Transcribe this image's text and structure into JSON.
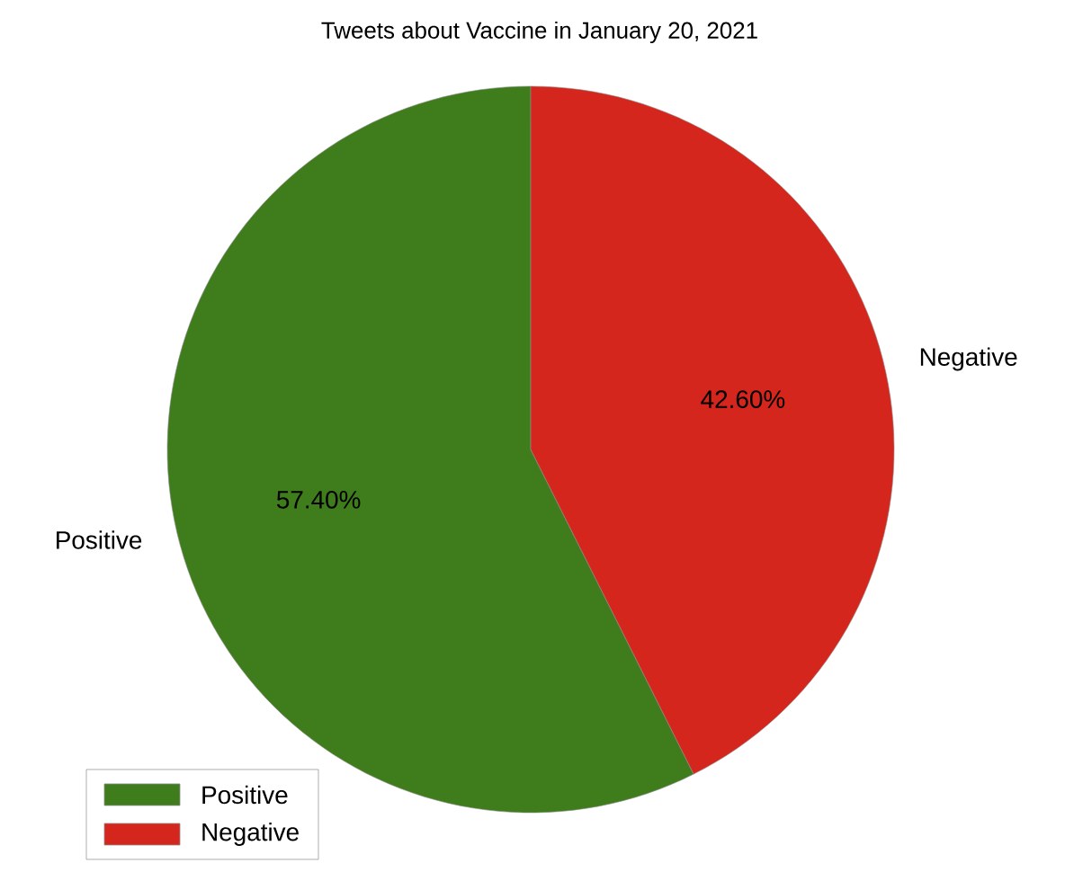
{
  "chart_data": {
    "type": "pie",
    "title": "Tweets about Vaccine in January 20, 2021",
    "categories": [
      "Positive",
      "Negative"
    ],
    "values": [
      57.4,
      42.6
    ],
    "value_labels": [
      "57.40%",
      "42.60%"
    ],
    "colors": [
      "#3f7d1c",
      "#d4261c"
    ],
    "legend": "bottom left"
  }
}
